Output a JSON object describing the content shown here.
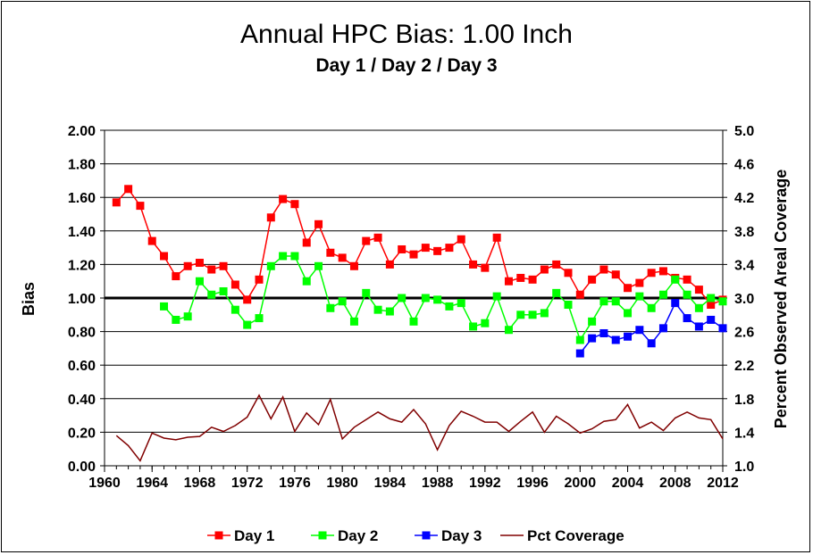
{
  "chart_data": {
    "type": "line",
    "title": "Annual HPC Bias:  1.00 Inch",
    "subtitle": "Day 1 / Day 2 / Day 3",
    "ylabel": "Bias",
    "y2label": "Percent Observed Areal Coverage",
    "xlim": [
      1960,
      2012
    ],
    "ylim": [
      0.0,
      2.0
    ],
    "y2lim": [
      1.0,
      5.0
    ],
    "x_ticks": [
      "1960",
      "1964",
      "1968",
      "1972",
      "1976",
      "1980",
      "1984",
      "1988",
      "1992",
      "1996",
      "2000",
      "2004",
      "2008",
      "2012"
    ],
    "y_ticks": [
      "0.00",
      "0.20",
      "0.40",
      "0.60",
      "0.80",
      "1.00",
      "1.20",
      "1.40",
      "1.60",
      "1.80",
      "2.00"
    ],
    "y2_ticks": [
      "1.0",
      "1.4",
      "1.8",
      "2.2",
      "2.6",
      "3.0",
      "3.4",
      "3.8",
      "4.2",
      "4.6",
      "5.0"
    ],
    "reference_line": 1.0,
    "grid": true,
    "legend_position": "bottom",
    "series": [
      {
        "name": "Day 1",
        "color": "#ff0000",
        "marker": "square",
        "axis": "left",
        "x": [
          1961,
          1962,
          1963,
          1964,
          1965,
          1966,
          1967,
          1968,
          1969,
          1970,
          1971,
          1972,
          1973,
          1974,
          1975,
          1976,
          1977,
          1978,
          1979,
          1980,
          1981,
          1982,
          1983,
          1984,
          1985,
          1986,
          1987,
          1988,
          1989,
          1990,
          1991,
          1992,
          1993,
          1994,
          1995,
          1996,
          1997,
          1998,
          1999,
          2000,
          2001,
          2002,
          2003,
          2004,
          2005,
          2006,
          2007,
          2008,
          2009,
          2010,
          2011,
          2012
        ],
        "values": [
          1.57,
          1.65,
          1.55,
          1.34,
          1.25,
          1.13,
          1.19,
          1.21,
          1.17,
          1.19,
          1.08,
          0.99,
          1.11,
          1.48,
          1.59,
          1.56,
          1.33,
          1.44,
          1.27,
          1.24,
          1.19,
          1.34,
          1.36,
          1.2,
          1.29,
          1.26,
          1.3,
          1.28,
          1.3,
          1.35,
          1.2,
          1.18,
          1.36,
          1.1,
          1.12,
          1.11,
          1.17,
          1.2,
          1.15,
          1.02,
          1.11,
          1.17,
          1.14,
          1.06,
          1.09,
          1.15,
          1.16,
          1.12,
          1.11,
          1.05,
          0.96,
          0.99
        ]
      },
      {
        "name": "Day 2",
        "color": "#00ff00",
        "marker": "square",
        "axis": "left",
        "x": [
          1965,
          1966,
          1967,
          1968,
          1969,
          1970,
          1971,
          1972,
          1973,
          1974,
          1975,
          1976,
          1977,
          1978,
          1979,
          1980,
          1981,
          1982,
          1983,
          1984,
          1985,
          1986,
          1987,
          1988,
          1989,
          1990,
          1991,
          1992,
          1993,
          1994,
          1995,
          1996,
          1997,
          1998,
          1999,
          2000,
          2001,
          2002,
          2003,
          2004,
          2005,
          2006,
          2007,
          2008,
          2009,
          2010,
          2011,
          2012
        ],
        "values": [
          0.95,
          0.87,
          0.89,
          1.1,
          1.02,
          1.04,
          0.93,
          0.84,
          0.88,
          1.19,
          1.25,
          1.25,
          1.1,
          1.19,
          0.94,
          0.98,
          0.86,
          1.03,
          0.93,
          0.92,
          1.0,
          0.86,
          1.0,
          0.99,
          0.95,
          0.97,
          0.83,
          0.85,
          1.01,
          0.81,
          0.9,
          0.9,
          0.91,
          1.03,
          0.96,
          0.75,
          0.86,
          0.98,
          0.98,
          0.91,
          1.01,
          0.94,
          1.02,
          1.11,
          1.02,
          0.94,
          1.0,
          0.98
        ]
      },
      {
        "name": "Day 3",
        "color": "#0000ff",
        "marker": "square",
        "axis": "left",
        "x": [
          2000,
          2001,
          2002,
          2003,
          2004,
          2005,
          2006,
          2007,
          2008,
          2009,
          2010,
          2011,
          2012
        ],
        "values": [
          0.67,
          0.76,
          0.79,
          0.75,
          0.77,
          0.81,
          0.73,
          0.82,
          0.97,
          0.88,
          0.83,
          0.87,
          0.82
        ]
      },
      {
        "name": "Pct Coverage",
        "color": "#800000",
        "marker": "none",
        "axis": "right",
        "x": [
          1961,
          1962,
          1963,
          1964,
          1965,
          1966,
          1967,
          1968,
          1969,
          1970,
          1971,
          1972,
          1973,
          1974,
          1975,
          1976,
          1977,
          1978,
          1979,
          1980,
          1981,
          1982,
          1983,
          1984,
          1985,
          1986,
          1987,
          1988,
          1989,
          1990,
          1991,
          1992,
          1993,
          1994,
          1995,
          1996,
          1997,
          1998,
          1999,
          2000,
          2001,
          2002,
          2003,
          2004,
          2005,
          2006,
          2007,
          2008,
          2009,
          2010,
          2011,
          2012
        ],
        "values": [
          1.36,
          1.24,
          1.06,
          1.39,
          1.33,
          1.31,
          1.34,
          1.35,
          1.46,
          1.41,
          1.48,
          1.58,
          1.84,
          1.56,
          1.82,
          1.41,
          1.63,
          1.49,
          1.79,
          1.32,
          1.46,
          1.55,
          1.64,
          1.56,
          1.52,
          1.67,
          1.5,
          1.19,
          1.48,
          1.65,
          1.59,
          1.52,
          1.52,
          1.41,
          1.53,
          1.64,
          1.4,
          1.59,
          1.5,
          1.39,
          1.44,
          1.53,
          1.55,
          1.73,
          1.45,
          1.52,
          1.42,
          1.57,
          1.64,
          1.57,
          1.55,
          1.32
        ]
      }
    ]
  }
}
